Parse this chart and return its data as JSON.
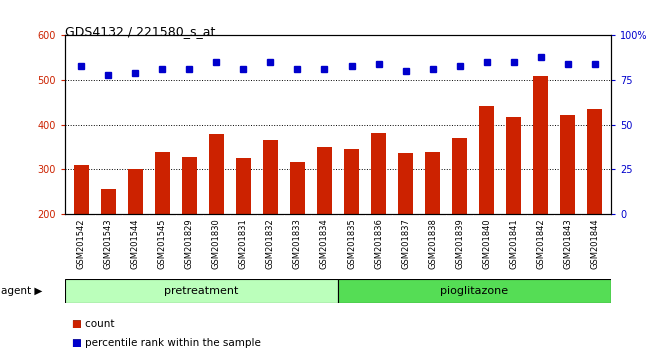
{
  "title": "GDS4132 / 221580_s_at",
  "samples": [
    "GSM201542",
    "GSM201543",
    "GSM201544",
    "GSM201545",
    "GSM201829",
    "GSM201830",
    "GSM201831",
    "GSM201832",
    "GSM201833",
    "GSM201834",
    "GSM201835",
    "GSM201836",
    "GSM201837",
    "GSM201838",
    "GSM201839",
    "GSM201840",
    "GSM201841",
    "GSM201842",
    "GSM201843",
    "GSM201844"
  ],
  "counts": [
    310,
    257,
    302,
    340,
    328,
    380,
    325,
    365,
    317,
    350,
    345,
    382,
    337,
    338,
    370,
    443,
    417,
    510,
    422,
    435
  ],
  "percentiles": [
    83,
    78,
    79,
    81,
    81,
    85,
    81,
    85,
    81,
    81,
    83,
    84,
    80,
    81,
    83,
    85,
    85,
    88,
    84,
    84
  ],
  "pretreatment_count": 10,
  "pioglitazone_count": 10,
  "ylim_left": [
    200,
    600
  ],
  "ylim_right": [
    0,
    100
  ],
  "yticks_left": [
    200,
    300,
    400,
    500,
    600
  ],
  "yticks_right": [
    0,
    25,
    50,
    75,
    100
  ],
  "bar_color": "#cc2200",
  "dot_color": "#0000cc",
  "bg_color": "#d0d0d0",
  "pretreatment_color": "#bbffbb",
  "pioglitazone_color": "#55dd55",
  "grid_color": "#000000",
  "agent_label": "agent",
  "pretreatment_label": "pretreatment",
  "pioglitazone_label": "pioglitazone",
  "legend_count_label": "count",
  "legend_pct_label": "percentile rank within the sample",
  "title_fontsize": 9,
  "tick_fontsize": 7,
  "label_fontsize": 8
}
